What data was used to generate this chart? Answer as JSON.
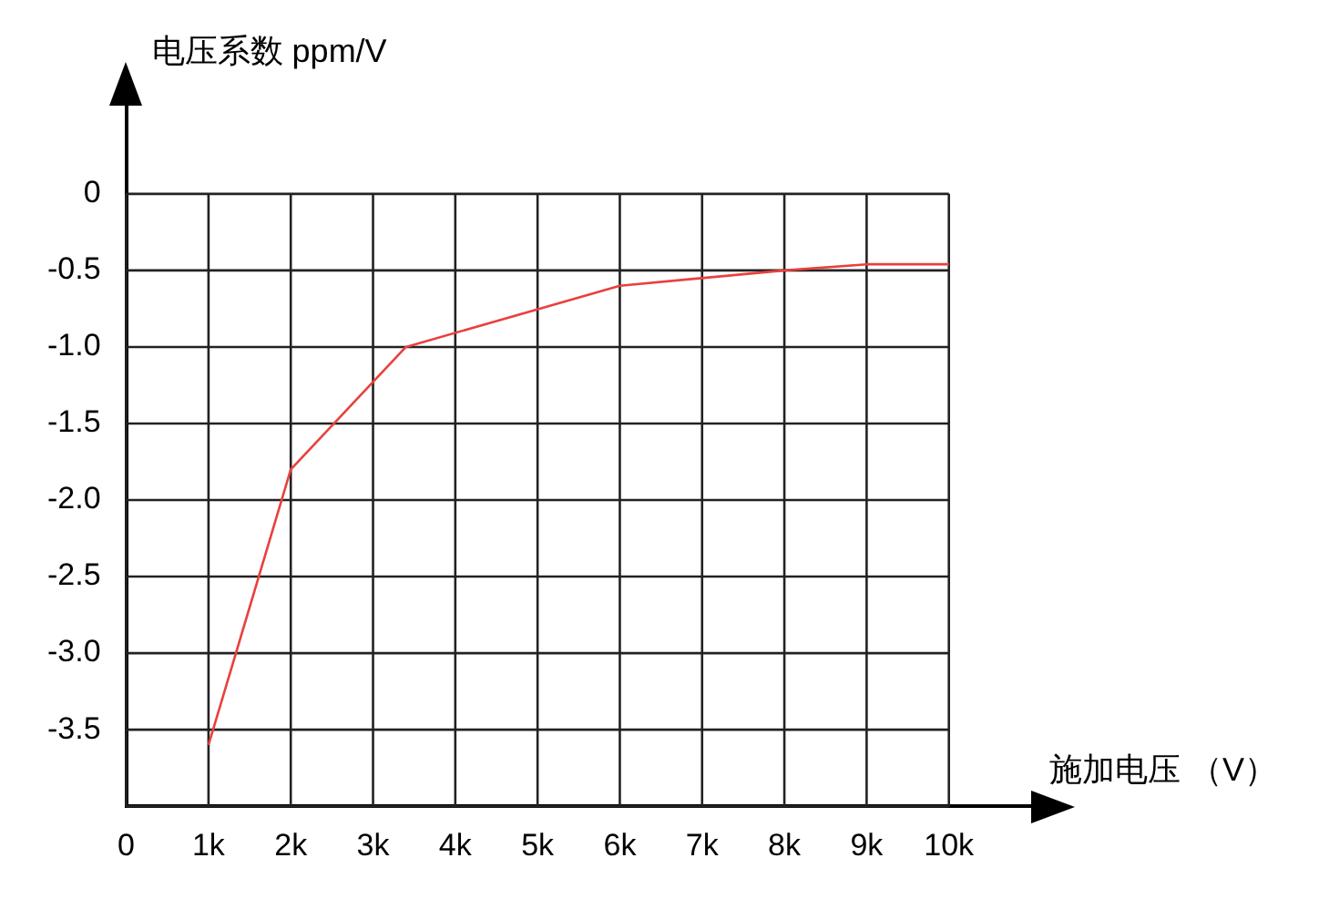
{
  "chart_data": {
    "type": "line",
    "xlabel": "施加电压 （V）",
    "ylabel": "电压系数 ppm/V",
    "x": [
      1000,
      2000,
      3400,
      6000,
      8000,
      9000,
      10000
    ],
    "series": [
      {
        "color": "#e8413c",
        "values": [
          -3.6,
          -1.8,
          -1.0,
          -0.6,
          -0.5,
          -0.46,
          -0.46
        ]
      }
    ],
    "xlim": [
      0,
      11000
    ],
    "xticks": [
      0,
      {
        "value": 1000,
        "label": "1k"
      },
      {
        "value": 2000,
        "label": "2k"
      },
      {
        "value": 3000,
        "label": "3k"
      },
      {
        "value": 4000,
        "label": "4k"
      },
      {
        "value": 5000,
        "label": "5k"
      },
      {
        "value": 6000,
        "label": "6k"
      },
      {
        "value": 7000,
        "label": "7k"
      },
      {
        "value": 8000,
        "label": "8k"
      },
      {
        "value": 9000,
        "label": "9k"
      },
      {
        "value": 10000,
        "label": "10k"
      }
    ],
    "ylim": [
      -4,
      0.6
    ],
    "yticks": [
      {
        "value": -4,
        "label": null
      },
      {
        "value": -3.5,
        "label": "-3.5"
      },
      {
        "value": -3,
        "label": "-3.0"
      },
      {
        "value": -2.5,
        "label": "-2.5"
      },
      {
        "value": -2,
        "label": "-2.0"
      },
      {
        "value": -1.5,
        "label": "-1.5"
      },
      {
        "value": -1,
        "label": "-1.0"
      },
      {
        "value": -0.5,
        "label": "-0.5"
      },
      0
    ],
    "grid": true,
    "legend": false,
    "marker": "none",
    "line_style": "solid"
  }
}
